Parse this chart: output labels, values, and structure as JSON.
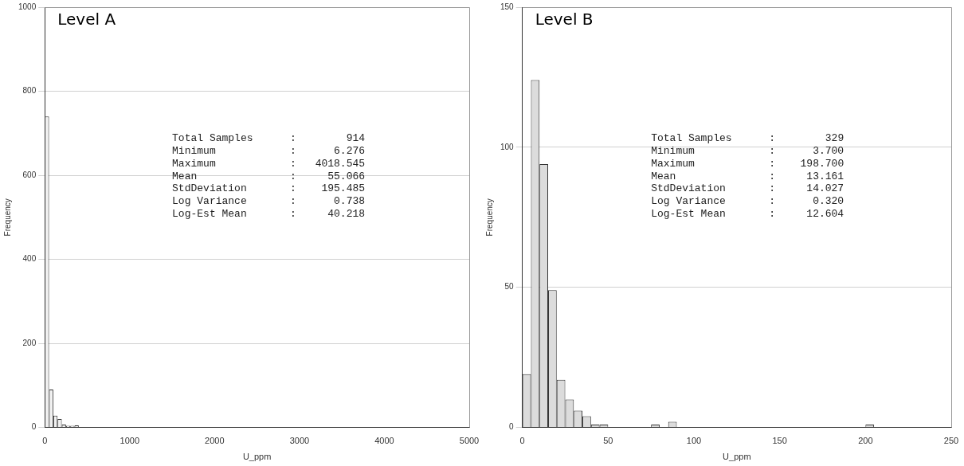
{
  "chart_data": [
    {
      "type": "histogram",
      "title": "Level A",
      "xlabel": "U_ppm",
      "ylabel": "Frequency",
      "bins": [
        0,
        50,
        100,
        150,
        200,
        250,
        300,
        350,
        400,
        500,
        550,
        600,
        650,
        700,
        750,
        800,
        850,
        1000,
        1050,
        1800,
        1850,
        3150,
        3200,
        4000,
        4050
      ],
      "values": [
        740,
        90,
        28,
        20,
        7,
        4,
        4,
        5,
        null,
        1,
        1,
        0,
        1,
        1,
        0,
        1,
        0,
        1,
        0,
        1,
        0,
        1,
        0,
        1
      ],
      "color": "#f2f2f2",
      "xlim": [
        0,
        5000
      ],
      "xticks": [
        0,
        1000,
        2000,
        3000,
        4000,
        5000
      ],
      "ylim": [
        0,
        1000
      ],
      "yticks": [
        0,
        200,
        400,
        600,
        800,
        1000
      ],
      "grid": "y",
      "legend": false,
      "annotations": [
        "Total Samples : 914",
        "Minimum : 6.276",
        "Maximum : 4018.545",
        "Mean : 55.066",
        "StdDeviation : 195.485",
        "Log Variance : 0.738",
        "Log-Est Mean : 40.218"
      ]
    },
    {
      "type": "histogram",
      "title": "Level B",
      "xlabel": "U_ppm",
      "ylabel": "Frequency",
      "bins": [
        0,
        5,
        10,
        15,
        20,
        25,
        30,
        35,
        40,
        45,
        50,
        75,
        80,
        85,
        90,
        200,
        205
      ],
      "values": [
        19,
        124,
        94,
        49,
        17,
        10,
        6,
        4,
        1,
        1,
        0,
        1,
        0,
        2,
        0,
        1
      ],
      "color": "#dcdcdc",
      "xlim": [
        0,
        250
      ],
      "xticks": [
        0,
        50,
        100,
        150,
        200,
        250
      ],
      "ylim": [
        0,
        150
      ],
      "yticks": [
        0,
        50,
        100,
        150
      ],
      "grid": "y",
      "legend": false,
      "annotations": [
        "Total Samples : 329",
        "Minimum : 3.700",
        "Maximum : 198.700",
        "Mean : 13.161",
        "StdDeviation : 14.027",
        "Log Variance : 0.320",
        "Log-Est Mean : 12.604"
      ]
    }
  ]
}
